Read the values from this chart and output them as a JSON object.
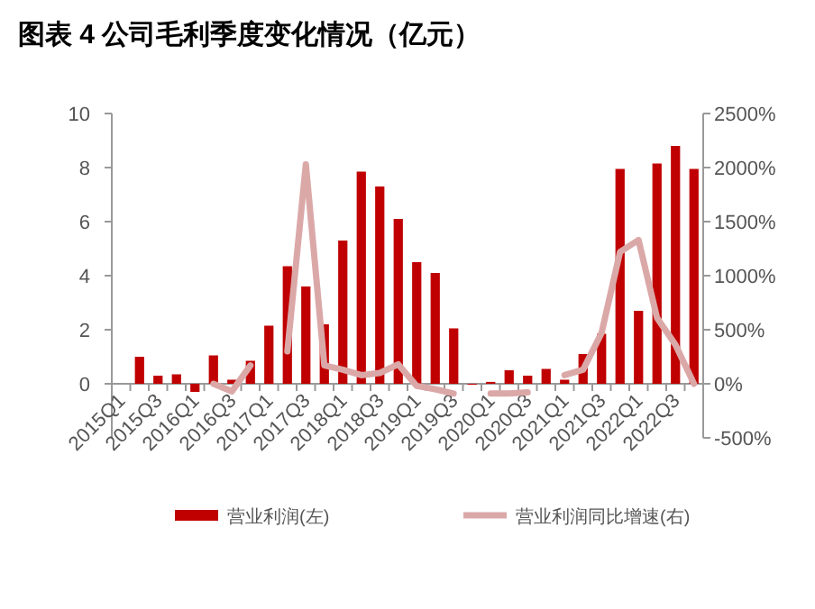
{
  "chart_data": {
    "type": "bar",
    "title": "图表 4  公司毛利季度变化情况（亿元）",
    "categories": [
      "2015Q1",
      null,
      "2015Q3",
      null,
      "2016Q1",
      null,
      "2016Q3",
      null,
      "2017Q1",
      null,
      "2017Q3",
      null,
      "2018Q1",
      null,
      "2018Q3",
      null,
      "2019Q1",
      null,
      "2019Q3",
      null,
      "2020Q1",
      null,
      "2020Q3",
      null,
      "2021Q1",
      null,
      "2021Q3",
      null,
      "2022Q1",
      null,
      "2022Q3",
      null
    ],
    "series": [
      {
        "name": "营业利润(左)",
        "color": "#c00000",
        "values": [
          null,
          1.0,
          0.3,
          0.35,
          -0.3,
          1.05,
          0.15,
          0.85,
          2.15,
          4.35,
          3.6,
          2.2,
          5.3,
          7.85,
          7.3,
          6.1,
          4.5,
          4.1,
          2.05,
          0.0,
          0.07,
          0.5,
          0.3,
          0.55,
          0.15,
          1.1,
          1.85,
          7.95,
          2.7,
          8.15,
          8.8,
          7.95
        ]
      },
      {
        "name": "营业利润同比增速(右)",
        "type": "line",
        "axis": "y2",
        "color": "#dba8a8",
        "values": [
          null,
          null,
          null,
          null,
          null,
          0,
          -70,
          170,
          null,
          300,
          2030,
          170,
          130,
          80,
          100,
          180,
          -20,
          -50,
          -90,
          null,
          -90,
          -90,
          -80,
          null,
          80,
          130,
          470,
          1220,
          1330,
          610,
          360,
          0
        ]
      }
    ],
    "ylim": [
      -2,
      10
    ],
    "yticks": [
      0,
      2,
      4,
      6,
      8,
      10
    ],
    "y2lim": [
      -500,
      2500
    ],
    "y2ticks": [
      {
        "value": -500,
        "label": "-500%"
      },
      {
        "value": 0,
        "label": "0%"
      },
      {
        "value": 500,
        "label": "500%"
      },
      {
        "value": 1000,
        "label": "1000%"
      },
      {
        "value": 1500,
        "label": "1500%"
      },
      {
        "value": 2000,
        "label": "2000%"
      },
      {
        "value": 2500,
        "label": "2500%"
      }
    ],
    "grid": false,
    "legend": "bottom"
  }
}
